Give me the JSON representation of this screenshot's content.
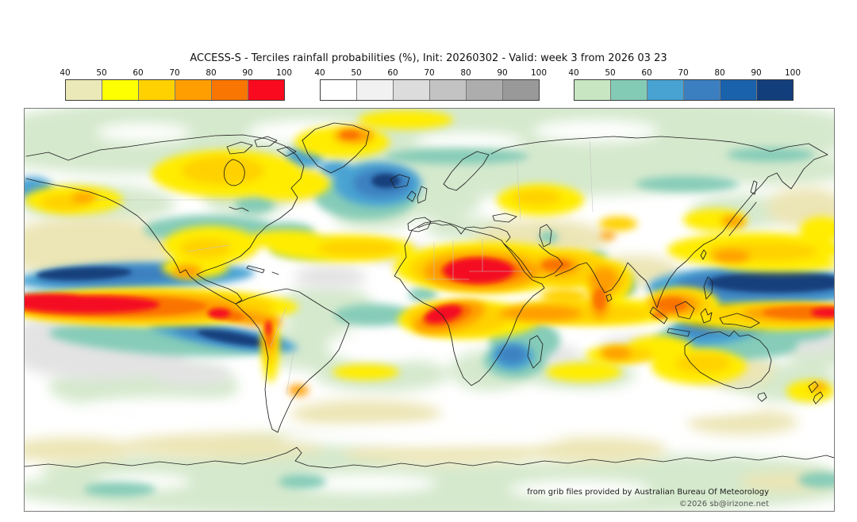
{
  "title": "ACCESS-S - Terciles rainfall probabilities (%), Init: 20260302 - Valid: week 3 from 2026 03 23",
  "legend": {
    "ticks": [
      "40",
      "50",
      "60",
      "70",
      "80",
      "90",
      "100"
    ],
    "bars": [
      {
        "id": "below-normal-dry",
        "colors": [
          "#ece9b8",
          "#feff00",
          "#ffd100",
          "#ff9e00",
          "#f97602",
          "#f90a1e"
        ]
      },
      {
        "id": "near-normal",
        "colors": [
          "#ffffff",
          "#f1f1f1",
          "#dcdcdc",
          "#c3c3c3",
          "#adadad",
          "#999999"
        ]
      },
      {
        "id": "above-normal-wet",
        "colors": [
          "#c8e6c2",
          "#84cbb6",
          "#48a2d2",
          "#3b7fc0",
          "#1a62ab",
          "#123e7c"
        ]
      }
    ]
  },
  "map": {
    "credit": "from grib files provided by Australian Bureau Of Meteorology",
    "copyright": "©2026 sb@irizone.net"
  }
}
